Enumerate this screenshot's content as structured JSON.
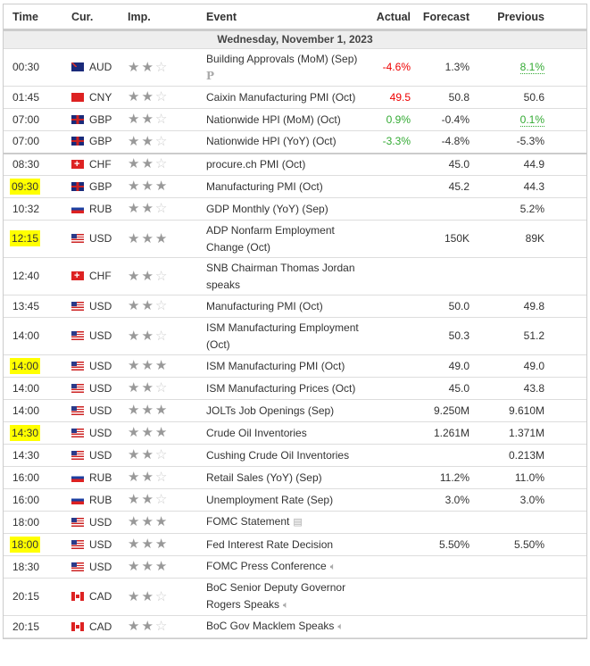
{
  "headers": {
    "time": "Time",
    "currency": "Cur.",
    "importance": "Imp.",
    "event": "Event",
    "actual": "Actual",
    "forecast": "Forecast",
    "previous": "Previous"
  },
  "date": "Wednesday, November 1, 2023",
  "colors": {
    "negative": "#e00000",
    "positive": "#33aa33",
    "highlight": "#ffff00"
  },
  "rows": [
    {
      "time": "00:30",
      "cur": "AUD",
      "imp": 2,
      "event": "Building Approvals (MoM) (Sep)",
      "icon": "preliminary-icon",
      "icon_text": "P",
      "actual": "-4.6%",
      "actual_color": "red",
      "forecast": "1.3%",
      "previous": "8.1%",
      "previous_color": "green",
      "tall": true
    },
    {
      "time": "01:45",
      "cur": "CNY",
      "imp": 2,
      "event": "Caixin Manufacturing PMI (Oct)",
      "actual": "49.5",
      "actual_color": "red",
      "forecast": "50.8",
      "previous": "50.6"
    },
    {
      "time": "07:00",
      "cur": "GBP",
      "imp": 2,
      "event": "Nationwide HPI (MoM) (Oct)",
      "actual": "0.9%",
      "actual_color": "green",
      "forecast": "-0.4%",
      "previous": "0.1%",
      "previous_color": "green"
    },
    {
      "time": "07:00",
      "cur": "GBP",
      "imp": 2,
      "event": "Nationwide HPI (YoY) (Oct)",
      "actual": "-3.3%",
      "actual_color": "green",
      "forecast": "-4.8%",
      "previous": "-5.3%",
      "sep": true
    },
    {
      "time": "08:30",
      "cur": "CHF",
      "imp": 2,
      "event": "procure.ch PMI (Oct)",
      "actual": "",
      "forecast": "45.0",
      "previous": "44.9"
    },
    {
      "time": "09:30",
      "cur": "GBP",
      "imp": 3,
      "event": "Manufacturing PMI (Oct)",
      "actual": "",
      "forecast": "45.2",
      "previous": "44.3",
      "highlight": true
    },
    {
      "time": "10:32",
      "cur": "RUB",
      "imp": 2,
      "event": "GDP Monthly (YoY) (Sep)",
      "actual": "",
      "forecast": "",
      "previous": "5.2%"
    },
    {
      "time": "12:15",
      "cur": "USD",
      "imp": 3,
      "event": "ADP Nonfarm Employment Change (Oct)",
      "actual": "",
      "forecast": "150K",
      "previous": "89K",
      "highlight": true,
      "tall": true
    },
    {
      "time": "12:40",
      "cur": "CHF",
      "imp": 2,
      "event": "SNB Chairman Thomas Jordan speaks",
      "actual": "",
      "forecast": "",
      "previous": "",
      "tall": true
    },
    {
      "time": "13:45",
      "cur": "USD",
      "imp": 2,
      "event": "Manufacturing PMI (Oct)",
      "actual": "",
      "forecast": "50.0",
      "previous": "49.8"
    },
    {
      "time": "14:00",
      "cur": "USD",
      "imp": 2,
      "event": "ISM Manufacturing Employment (Oct)",
      "actual": "",
      "forecast": "50.3",
      "previous": "51.2",
      "tall": true
    },
    {
      "time": "14:00",
      "cur": "USD",
      "imp": 3,
      "event": "ISM Manufacturing PMI (Oct)",
      "actual": "",
      "forecast": "49.0",
      "previous": "49.0",
      "highlight": true
    },
    {
      "time": "14:00",
      "cur": "USD",
      "imp": 2,
      "event": "ISM Manufacturing Prices (Oct)",
      "actual": "",
      "forecast": "45.0",
      "previous": "43.8"
    },
    {
      "time": "14:00",
      "cur": "USD",
      "imp": 3,
      "event": "JOLTs Job Openings (Sep)",
      "actual": "",
      "forecast": "9.250M",
      "previous": "9.610M"
    },
    {
      "time": "14:30",
      "cur": "USD",
      "imp": 3,
      "event": "Crude Oil Inventories",
      "actual": "",
      "forecast": "1.261M",
      "previous": "1.371M",
      "highlight": true
    },
    {
      "time": "14:30",
      "cur": "USD",
      "imp": 2,
      "event": "Cushing Crude Oil Inventories",
      "actual": "",
      "forecast": "",
      "previous": "0.213M"
    },
    {
      "time": "16:00",
      "cur": "RUB",
      "imp": 2,
      "event": "Retail Sales (YoY) (Sep)",
      "actual": "",
      "forecast": "11.2%",
      "previous": "11.0%"
    },
    {
      "time": "16:00",
      "cur": "RUB",
      "imp": 2,
      "event": "Unemployment Rate (Sep)",
      "actual": "",
      "forecast": "3.0%",
      "previous": "3.0%"
    },
    {
      "time": "18:00",
      "cur": "USD",
      "imp": 3,
      "event": "FOMC Statement",
      "icon": "document-icon",
      "actual": "",
      "forecast": "",
      "previous": ""
    },
    {
      "time": "18:00",
      "cur": "USD",
      "imp": 3,
      "event": "Fed Interest Rate Decision",
      "actual": "",
      "forecast": "5.50%",
      "previous": "5.50%",
      "highlight": true
    },
    {
      "time": "18:30",
      "cur": "USD",
      "imp": 3,
      "event": "FOMC Press Conference",
      "icon": "speaker-icon",
      "actual": "",
      "forecast": "",
      "previous": ""
    },
    {
      "time": "20:15",
      "cur": "CAD",
      "imp": 2,
      "event": "BoC Senior Deputy Governor Rogers Speaks",
      "icon": "speaker-icon",
      "actual": "",
      "forecast": "",
      "previous": "",
      "tall": true
    },
    {
      "time": "20:15",
      "cur": "CAD",
      "imp": 2,
      "event": "BoC Gov Macklem Speaks",
      "icon": "speaker-icon",
      "actual": "",
      "forecast": "",
      "previous": ""
    }
  ]
}
